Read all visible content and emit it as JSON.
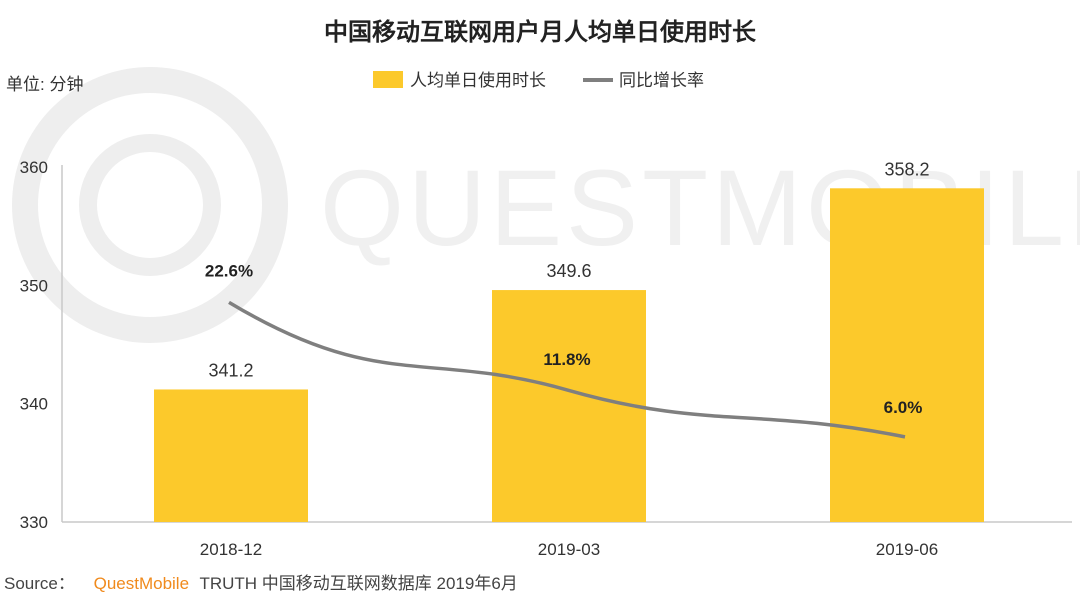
{
  "title": "中国移动互联网用户月人均单日使用时长",
  "unit": "单位: 分钟",
  "legend": {
    "bar": "人均单日使用时长",
    "line": "同比增长率"
  },
  "colors": {
    "bar": "#fcc92b",
    "line": "#7f7f7f",
    "brand": "#f08a1c"
  },
  "watermark": "QUESTMOBILE",
  "chart_data": {
    "type": "bar",
    "categories": [
      "2018-12",
      "2019-03",
      "2019-06"
    ],
    "ylim": [
      330,
      360
    ],
    "yticks": [
      330,
      340,
      350,
      360
    ],
    "series": [
      {
        "name": "人均单日使用时长",
        "type": "bar",
        "values": [
          341.2,
          349.6,
          358.2
        ],
        "labels": [
          "341.2",
          "349.6",
          "358.2"
        ]
      },
      {
        "name": "同比增长率",
        "type": "line",
        "values": [
          22.6,
          11.8,
          6.0
        ],
        "labels": [
          "22.6%",
          "11.8%",
          "6.0%"
        ]
      }
    ]
  },
  "source": {
    "prefix": "Source：",
    "brand": "QuestMobile",
    "rest": "TRUTH 中国移动互联网数据库 2019年6月"
  }
}
